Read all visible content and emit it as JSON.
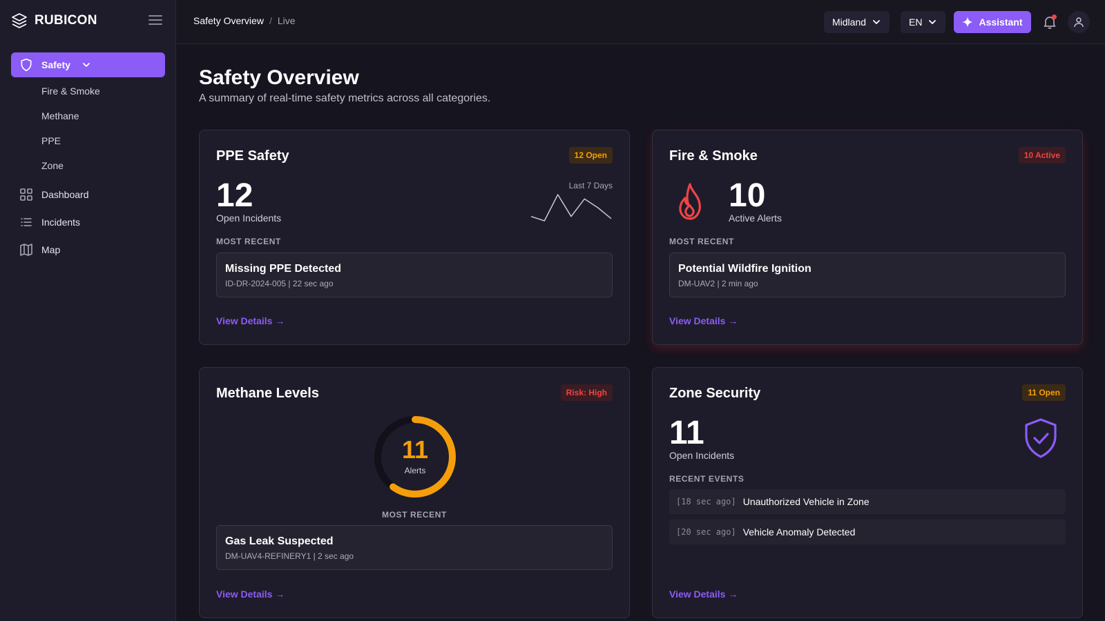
{
  "brand": {
    "name": "RUBICON"
  },
  "sidebar": {
    "safety_label": "Safety",
    "sub_items": [
      "Fire & Smoke",
      "Methane",
      "PPE",
      "Zone"
    ],
    "items": [
      {
        "label": "Dashboard",
        "icon": "grid-icon"
      },
      {
        "label": "Incidents",
        "icon": "list-icon"
      },
      {
        "label": "Map",
        "icon": "map-icon"
      }
    ]
  },
  "topbar": {
    "breadcrumb": [
      "Safety Overview",
      "Live"
    ],
    "separator": "/",
    "region": "Midland",
    "language": "EN",
    "assistant_label": "Assistant",
    "notification_dot_color": "#ef4444"
  },
  "page": {
    "title": "Safety Overview",
    "subtitle": "A summary of real-time safety metrics across all categories."
  },
  "ppe": {
    "title": "PPE Safety",
    "badge": "12 Open",
    "count": "12",
    "count_label": "Open Incidents",
    "sparkline_label": "Last 7 Days",
    "sparkline_values": [
      1,
      0,
      6,
      1,
      5,
      3,
      0.5
    ],
    "section_label": "MOST RECENT",
    "recent_title": "Missing PPE Detected",
    "recent_meta": "ID-DR-2024-005 | 22 sec ago",
    "link": "View Details →"
  },
  "fire": {
    "title": "Fire & Smoke",
    "badge": "10 Active",
    "count": "10",
    "count_label": "Active Alerts",
    "section_label": "MOST RECENT",
    "recent_title": "Potential Wildfire Ignition",
    "recent_meta": "DM-UAV2 | 2 min ago",
    "link": "View Details →"
  },
  "methane": {
    "title": "Methane Levels",
    "badge": "Risk: High",
    "gauge_value": "11",
    "gauge_label": "Alerts",
    "gauge_fraction": 0.6,
    "section_label": "MOST RECENT",
    "recent_title": "Gas Leak Suspected",
    "recent_meta": "DM-UAV4-REFINERY1 | 2 sec ago",
    "link": "View Details →"
  },
  "zone": {
    "title": "Zone Security",
    "badge": "11 Open",
    "count": "11",
    "count_label": "Open Incidents",
    "section_label": "RECENT EVENTS",
    "events": [
      {
        "time": "[18 sec ago]",
        "text": "Unauthorized Vehicle in Zone"
      },
      {
        "time": "[20 sec ago]",
        "text": "Vehicle Anomaly Detected"
      }
    ],
    "link": "View Details →"
  },
  "colors": {
    "accent": "#8b5cf6",
    "warning": "#f59e0b",
    "danger": "#ef4444"
  }
}
